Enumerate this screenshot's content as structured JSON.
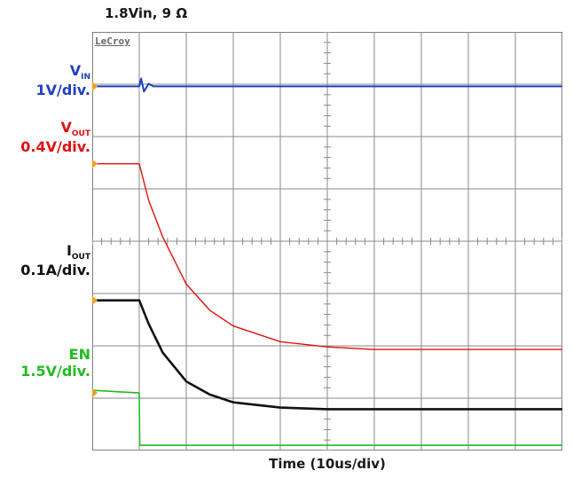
{
  "title": "1.8Vin, 9 Ω",
  "brand": "LeCroy",
  "xlabel": "Time (10us/div)",
  "channels": [
    {
      "id": "vin",
      "name": "V",
      "sub": "IN",
      "scale": "1V/div.",
      "color": "#1f3fbf"
    },
    {
      "id": "vout",
      "name": "V",
      "sub": "OUT",
      "scale": "0.4V/div.",
      "color": "#e01010"
    },
    {
      "id": "iout",
      "name": "I",
      "sub": "OUT",
      "scale": "0.1A/div.",
      "color": "#111111"
    },
    {
      "id": "en",
      "name": "EN",
      "sub": "",
      "scale": "1.5V/div.",
      "color": "#22bb22"
    }
  ],
  "chart_data": {
    "type": "line",
    "title": "1.8Vin, 9 Ω",
    "xlabel": "Time (10us/div)",
    "ylabel": "",
    "grid": true,
    "x_unit": "us",
    "xlim": [
      0,
      100
    ],
    "ylim_divisions": [
      0,
      8
    ],
    "series": [
      {
        "name": "VIN",
        "scale_per_div": "1V/div.",
        "ref_division": 6.96,
        "x": [
          0,
          10,
          10.4,
          11,
          12,
          13,
          100
        ],
        "y_div": [
          0,
          0,
          0.15,
          -0.1,
          0.05,
          0,
          0
        ]
      },
      {
        "name": "VOUT",
        "scale_per_div": "0.4V/div.",
        "ref_division": 5.48,
        "x": [
          0,
          10,
          12,
          15,
          20,
          25,
          30,
          40,
          50,
          60,
          100
        ],
        "y_div": [
          0,
          0,
          -0.7,
          -1.4,
          -2.3,
          -2.8,
          -3.1,
          -3.4,
          -3.5,
          -3.55,
          -3.55
        ]
      },
      {
        "name": "IOUT",
        "scale_per_div": "0.1A/div.",
        "ref_division": 2.87,
        "x": [
          0,
          10,
          12,
          15,
          20,
          25,
          30,
          40,
          50,
          100
        ],
        "y_div": [
          0,
          0,
          -0.45,
          -1.0,
          -1.55,
          -1.8,
          -1.95,
          -2.05,
          -2.08,
          -2.08
        ]
      },
      {
        "name": "EN",
        "scale_per_div": "1.5V/div.",
        "ref_division": 1.1,
        "x": [
          0,
          10,
          10.1,
          100
        ],
        "y_div": [
          0.05,
          0,
          -1.0,
          -1.0
        ]
      }
    ]
  }
}
